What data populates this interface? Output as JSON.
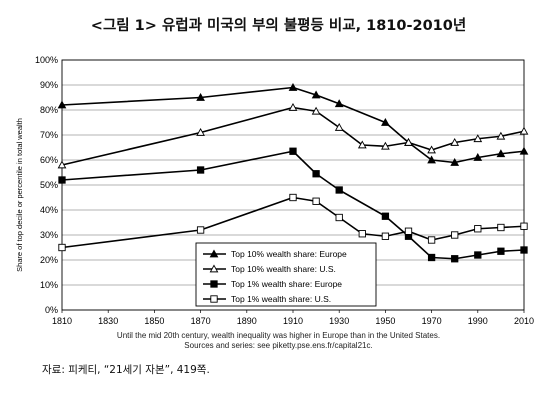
{
  "title": "<그림 1> 유럽과 미국의 부의 불평등 비교, 1810-2010년",
  "notes": {
    "line1": "Until the mid 20th century, wealth inequality was higher in Europe than in the United States.",
    "line2": "Sources and series: see piketty.pse.ens.fr/capital21c."
  },
  "source": "자료: 피케티, “21세기 자본”, 419쪽.",
  "chart_data": {
    "type": "line",
    "title": "",
    "xlabel": "",
    "ylabel": "Share of top decile or percentile in total wealth",
    "xlim": [
      1810,
      2010
    ],
    "ylim": [
      0,
      100
    ],
    "x_ticks": [
      "1810",
      "1830",
      "1850",
      "1870",
      "1890",
      "1910",
      "1930",
      "1950",
      "1970",
      "1990",
      "2010"
    ],
    "y_ticks": [
      "0%",
      "10%",
      "20%",
      "30%",
      "40%",
      "50%",
      "60%",
      "70%",
      "80%",
      "90%",
      "100%"
    ],
    "grid": "horizontal",
    "legend_position": "bottom-center",
    "series": [
      {
        "name": "Top 10% wealth share: Europe",
        "marker": "filled-triangle",
        "x": [
          1810,
          1870,
          1910,
          1920,
          1930,
          1950,
          1960,
          1970,
          1980,
          1990,
          2000,
          2010
        ],
        "y": [
          82,
          85,
          89,
          86,
          82.5,
          75,
          67,
          60,
          59,
          61,
          62.5,
          63.5
        ]
      },
      {
        "name": "Top 10% wealth share: U.S.",
        "marker": "open-triangle",
        "x": [
          1810,
          1870,
          1910,
          1920,
          1930,
          1940,
          1950,
          1960,
          1970,
          1980,
          1990,
          2000,
          2010
        ],
        "y": [
          58,
          71,
          81,
          79.5,
          73,
          66,
          65.5,
          67,
          64,
          67,
          68.5,
          69.5,
          71.5
        ]
      },
      {
        "name": "Top 1% wealth share: Europe",
        "marker": "filled-square",
        "x": [
          1810,
          1870,
          1910,
          1920,
          1930,
          1950,
          1960,
          1970,
          1980,
          1990,
          2000,
          2010
        ],
        "y": [
          52,
          56,
          63.5,
          54.5,
          48,
          37.5,
          29.5,
          21,
          20.5,
          22,
          23.5,
          24
        ]
      },
      {
        "name": "Top 1% wealth share: U.S.",
        "marker": "open-square",
        "x": [
          1810,
          1870,
          1910,
          1920,
          1930,
          1940,
          1950,
          1960,
          1970,
          1980,
          1990,
          2000,
          2010
        ],
        "y": [
          25,
          32,
          45,
          43.5,
          37,
          30.5,
          29.5,
          31.5,
          28,
          30,
          32.5,
          33,
          33.5
        ]
      }
    ]
  }
}
